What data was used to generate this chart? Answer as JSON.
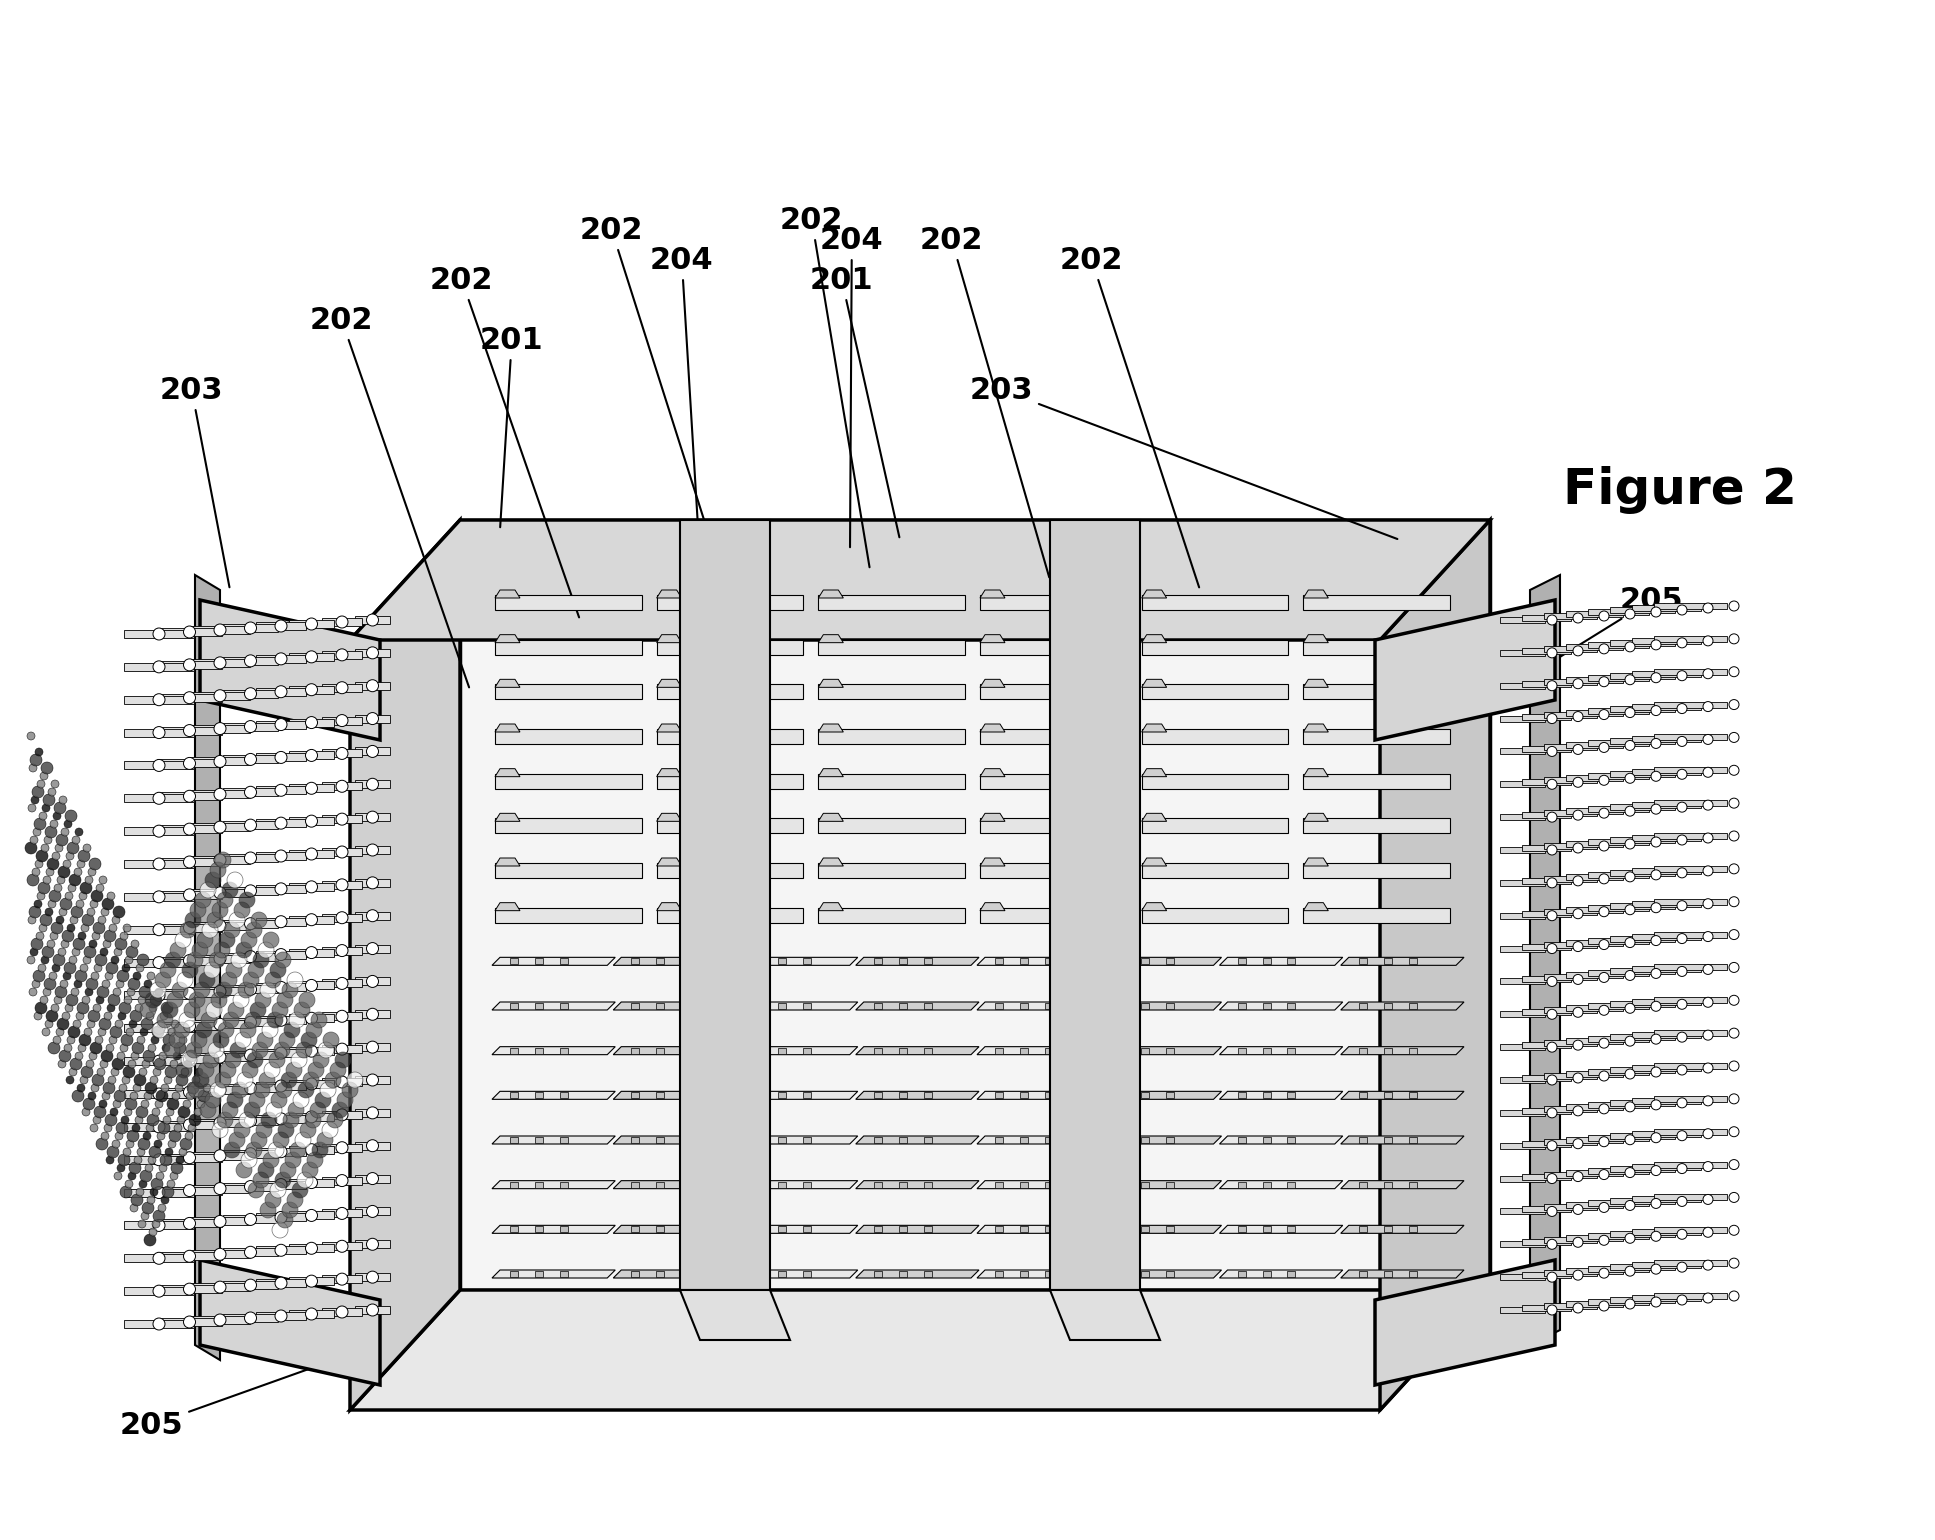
{
  "title": "Figure 2",
  "background_color": "#ffffff",
  "line_color": "#000000",
  "fig_width": 19.35,
  "fig_height": 15.4,
  "labels": {
    "205_top": "205",
    "205_right": "205",
    "203_left": "203",
    "203_right": "203",
    "202_labels": [
      "202",
      "202",
      "202",
      "202",
      "202",
      "202"
    ],
    "201_labels": [
      "201",
      "201"
    ],
    "204_labels": [
      "204",
      "204"
    ],
    "figure": "Figure 2"
  },
  "label_fontsize": 22,
  "figure_fontsize": 36,
  "connector_color": "#1a1a1a",
  "light_gray": "#cccccc",
  "mid_gray": "#888888"
}
